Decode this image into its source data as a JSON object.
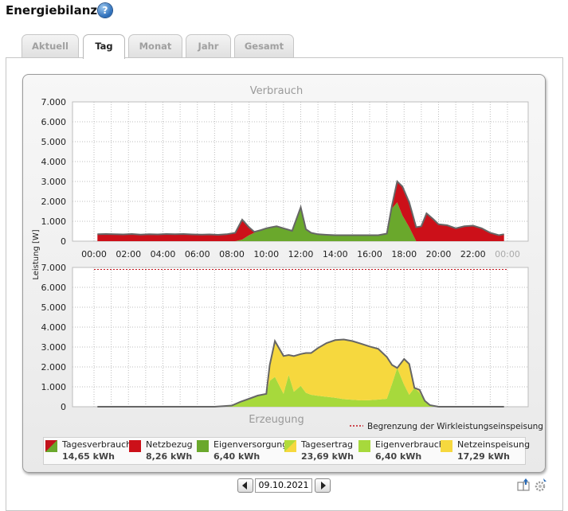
{
  "page": {
    "title": "Energiebilanz"
  },
  "tabs": [
    {
      "label": "Aktuell"
    },
    {
      "label": "Tag",
      "active": true
    },
    {
      "label": "Monat"
    },
    {
      "label": "Jahr"
    },
    {
      "label": "Gesamt"
    }
  ],
  "date": {
    "value": "09.10.2021"
  },
  "colors": {
    "tagesverbrauch": "#c3131c",
    "netzbezug": "#cc1019",
    "eigenversorgung": "#6aa82c",
    "tagesertrag": "#b2db3a",
    "eigenverbrauch": "#a7d93c",
    "netzeinspeisung": "#f6d83e",
    "grenze": "#c3131c",
    "outline": "#666666"
  },
  "legend": {
    "items": [
      {
        "label": "Tagesverbrauch",
        "value": "14,65 kWh",
        "icon": "split-red-green"
      },
      {
        "label": "Netzbezug",
        "value": "8,26 kWh",
        "icon": "red"
      },
      {
        "label": "Eigenversorgung",
        "value": "6,40 kWh",
        "icon": "green"
      },
      {
        "label": "Tagesertrag",
        "value": "23,69 kWh",
        "icon": "split-lightgreen-yellow"
      },
      {
        "label": "Eigenverbrauch",
        "value": "6,40 kWh",
        "icon": "lightgreen"
      },
      {
        "label": "Netzeinspeisung",
        "value": "17,29 kWh",
        "icon": "yellow"
      }
    ]
  },
  "chart_data": [
    {
      "type": "area",
      "title": "Verbrauch",
      "ylabel": "Leistung [W]",
      "ylim": [
        0,
        7000
      ],
      "yticks": [
        "7.000",
        "6.000",
        "5.000",
        "4.000",
        "3.000",
        "2.000",
        "1.000",
        "0"
      ],
      "xticks": [
        "00:00",
        "02:00",
        "04:00",
        "06:00",
        "08:00",
        "10:00",
        "12:00",
        "14:00",
        "16:00",
        "18:00",
        "20:00",
        "22:00",
        "00:00"
      ],
      "stacked": true,
      "x_hours": [
        0.2,
        0.7,
        1.2,
        1.7,
        2.2,
        2.7,
        3.2,
        3.7,
        4.2,
        4.7,
        5.2,
        5.7,
        6.2,
        6.7,
        7.2,
        7.7,
        8.2,
        8.6,
        9,
        9.3,
        9.7,
        10,
        10.3,
        10.6,
        11,
        11.5,
        12,
        12.3,
        12.6,
        13,
        13.5,
        14,
        14.5,
        15,
        15.5,
        16,
        16.5,
        17,
        17.3,
        17.6,
        17.9,
        18.3,
        18.7,
        19,
        19.3,
        19.7,
        20,
        20.5,
        21,
        21.5,
        22,
        22.5,
        23,
        23.5,
        23.8
      ],
      "grid": true,
      "series": [
        {
          "name": "Eigenversorgung",
          "values": [
            0,
            0,
            0,
            0,
            0,
            0,
            0,
            0,
            0,
            0,
            0,
            0,
            0,
            0,
            0,
            0,
            0,
            80,
            300,
            420,
            560,
            650,
            700,
            750,
            650,
            520,
            1700,
            600,
            420,
            350,
            320,
            300,
            300,
            300,
            300,
            300,
            300,
            380,
            1650,
            1950,
            1300,
            700,
            0,
            0,
            0,
            0,
            0,
            0,
            0,
            0,
            0,
            0,
            0,
            0,
            0
          ]
        },
        {
          "name": "Netzbezug",
          "values": [
            350,
            360,
            350,
            340,
            360,
            330,
            350,
            340,
            360,
            350,
            360,
            340,
            330,
            340,
            320,
            350,
            420,
            1000,
            400,
            50,
            0,
            0,
            0,
            0,
            0,
            0,
            0,
            0,
            0,
            0,
            0,
            0,
            0,
            0,
            0,
            0,
            0,
            0,
            150,
            1050,
            1450,
            1250,
            700,
            750,
            1400,
            1100,
            850,
            800,
            650,
            750,
            780,
            650,
            420,
            300,
            350
          ]
        }
      ]
    },
    {
      "type": "area",
      "title": "Erzeugung",
      "ylabel": "Leistung [W]",
      "ylim": [
        0,
        7000
      ],
      "yticks": [
        "7.000",
        "6.000",
        "5.000",
        "4.000",
        "3.000",
        "2.000",
        "1.000",
        "0"
      ],
      "xticks": [],
      "stacked": true,
      "grid": true,
      "limit_line": {
        "label": "Begrenzung der Wirkleistungseinspeisung",
        "value": 6900
      },
      "x_hours": [
        0.2,
        7,
        8,
        8.5,
        9,
        9.5,
        10,
        10.2,
        10.5,
        11,
        11.3,
        11.6,
        12,
        12.3,
        12.6,
        13,
        13.5,
        14,
        14.5,
        15,
        15.5,
        16,
        16.5,
        17,
        17.3,
        17.6,
        18,
        18.3,
        18.6,
        18.9,
        19.2,
        19.5,
        20,
        23.8
      ],
      "series": [
        {
          "name": "Eigenverbrauch",
          "values": [
            0,
            0,
            60,
            250,
            400,
            560,
            650,
            1300,
            1500,
            650,
            1600,
            750,
            1050,
            700,
            600,
            550,
            500,
            450,
            380,
            350,
            320,
            330,
            360,
            400,
            1150,
            1950,
            1100,
            600,
            950,
            700,
            300,
            80,
            0,
            0
          ]
        },
        {
          "name": "Netzeinspeisung",
          "values": [
            0,
            0,
            0,
            0,
            0,
            0,
            0,
            800,
            1800,
            1900,
            1000,
            1800,
            1600,
            2000,
            2100,
            2400,
            2700,
            2900,
            3000,
            2950,
            2850,
            2700,
            2550,
            2100,
            950,
            0,
            1300,
            1550,
            0,
            150,
            0,
            0,
            0,
            0
          ]
        }
      ]
    }
  ]
}
